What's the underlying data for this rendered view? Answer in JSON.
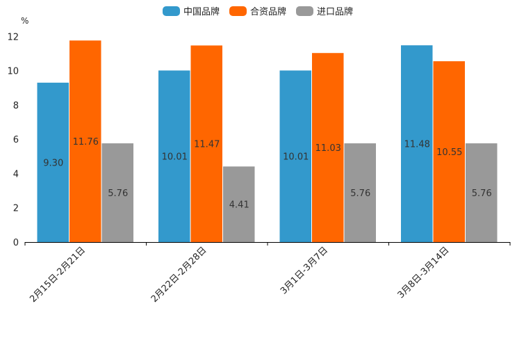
{
  "chart_data": {
    "type": "bar",
    "title": "",
    "unit_label": "%",
    "xlabel": "",
    "ylabel": "",
    "ylim": [
      0,
      12.5
    ],
    "yticks": [
      "0",
      "2",
      "4",
      "6",
      "8",
      "10",
      "12"
    ],
    "grid": false,
    "legend_position": "top-center",
    "categories": [
      "2月15日-2月21日",
      "2月22日-2月28日",
      "3月1日-3月7日",
      "3月8日-3月14日"
    ],
    "series": [
      {
        "name": "中国品牌",
        "color": "#3399cc",
        "values": [
          9.3,
          10.01,
          10.01,
          11.48
        ],
        "labels": [
          "9.30",
          "10.01",
          "10.01",
          "11.48"
        ]
      },
      {
        "name": "合资品牌",
        "color": "#ff6600",
        "values": [
          11.76,
          11.47,
          11.03,
          10.55
        ],
        "labels": [
          "11.76",
          "11.47",
          "11.03",
          "10.55"
        ]
      },
      {
        "name": "进口品牌",
        "color": "#999999",
        "values": [
          5.76,
          4.41,
          5.76,
          5.76
        ],
        "labels": [
          "5.76",
          "4.41",
          "5.76",
          "5.76"
        ]
      }
    ]
  }
}
